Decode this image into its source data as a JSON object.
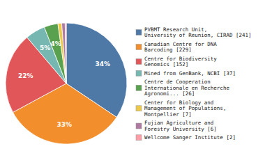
{
  "chart_data": {
    "type": "pie",
    "categories": [
      "PVBMT Research Unit,\nUniversity of Reunion, CIRAD [241]",
      "Canadian Centre for DNA\nBarcoding [229]",
      "Centre for Biodiversity\nGenomics [152]",
      "Mined from GenBank, NCBI [37]",
      "Centre de Cooperation\nInternationale en Recherche\nAgronomi... [26]",
      "Center for Biology and\nManagement of Populations,\nMontpellier [7]",
      "Fujian Agriculture and\nForestry University [6]",
      "Wellcome Sanger Institute [2]"
    ],
    "values": [
      34.4,
      32.7,
      21.7,
      5.3,
      3.7,
      1.0,
      0.9,
      0.3
    ],
    "value_labels": [
      "34%",
      "33%",
      "22%",
      "5%",
      "4%",
      null,
      null,
      null
    ],
    "data_labels": true,
    "legend": "right"
  }
}
